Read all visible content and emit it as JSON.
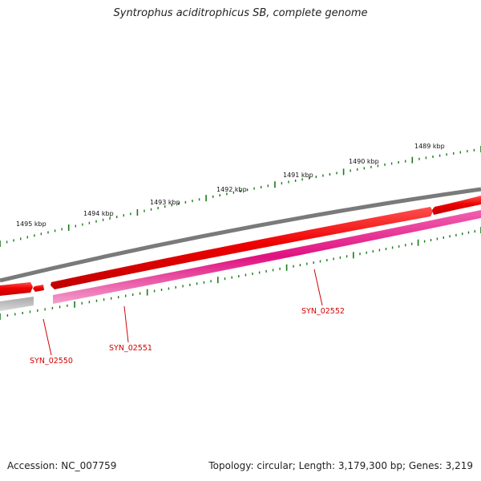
{
  "title": "Syntrophus aciditrophicus SB, complete genome",
  "footer": {
    "accession": "Accession: NC_007759",
    "summary": "Topology: circular; Length: 3,179,300 bp; Genes: 3,219"
  },
  "scale": {
    "unit": "kbp",
    "ticks": [
      {
        "label": "1495 kbp"
      },
      {
        "label": "1494 kbp"
      },
      {
        "label": "1493 kbp"
      },
      {
        "label": "1492 kbp"
      },
      {
        "label": "1491 kbp"
      },
      {
        "label": "1490 kbp"
      },
      {
        "label": "1489 kbp"
      }
    ]
  },
  "genes": [
    {
      "name": "SYN_02550"
    },
    {
      "name": "SYN_02551"
    },
    {
      "name": "SYN_02552"
    }
  ],
  "colors": {
    "backbone": "#7a7a7a",
    "forward_gene": "#ee0000",
    "cds_feature": "#e0117f",
    "gap_feature": "#c8c8c8",
    "tick": "#1a7a1a",
    "label": "#d40000"
  }
}
